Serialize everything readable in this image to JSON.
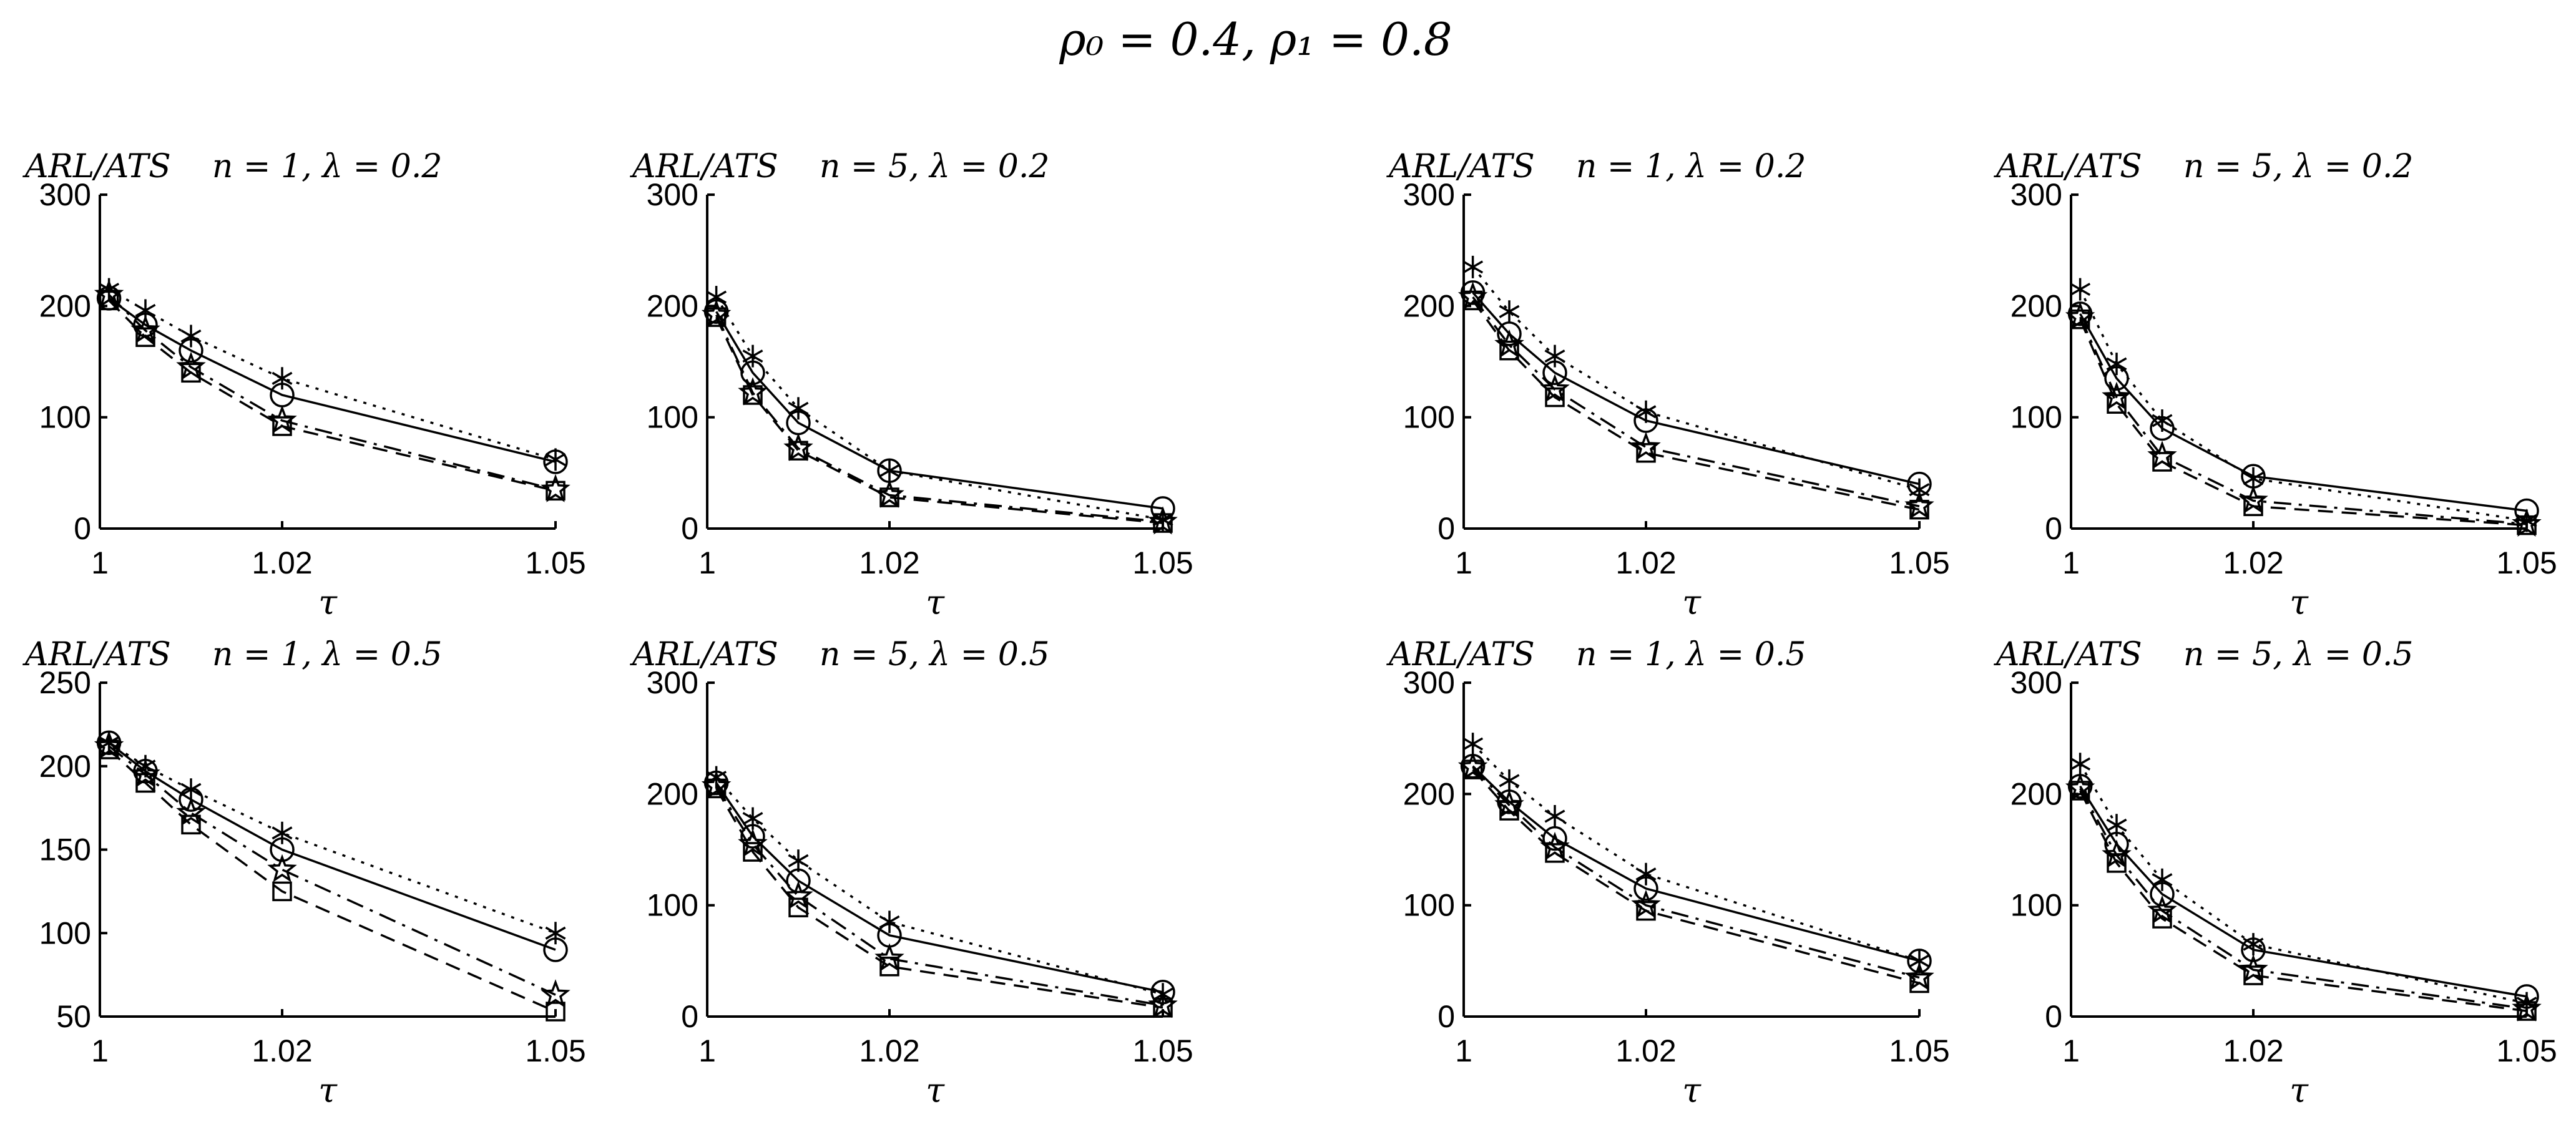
{
  "figure": {
    "title": "ρ₀ = 0.4, ρ₁ = 0.8"
  },
  "chart_data": [
    {
      "type": "line",
      "title": "ARL/ATS    n = 1, λ = 0.2",
      "xlabel": "τ",
      "x": [
        1.001,
        1.005,
        1.01,
        1.02,
        1.05
      ],
      "xticks": [
        1,
        1.02,
        1.05
      ],
      "xtick_labels": [
        "1",
        "1.02",
        "1.05"
      ],
      "xlim": [
        1,
        1.05
      ],
      "ylim": [
        0,
        300
      ],
      "yticks": [
        0,
        100,
        200,
        300
      ],
      "series": [
        {
          "name": "circle-solid",
          "line": "solid",
          "marker": "circle",
          "values": [
            207,
            183,
            160,
            120,
            60
          ]
        },
        {
          "name": "star6-dotted",
          "line": "dotted",
          "marker": "asterisk",
          "values": [
            215,
            196,
            173,
            135,
            62
          ]
        },
        {
          "name": "pentagram-dashdot",
          "line": "dashdot",
          "marker": "pentagram",
          "values": [
            210,
            178,
            145,
            97,
            35
          ]
        },
        {
          "name": "square-dashed",
          "line": "dashed",
          "marker": "square",
          "values": [
            205,
            172,
            140,
            92,
            34
          ]
        }
      ]
    },
    {
      "type": "line",
      "title": "ARL/ATS    n = 5, λ = 0.2",
      "xlabel": "τ",
      "x": [
        1.001,
        1.005,
        1.01,
        1.02,
        1.05
      ],
      "xticks": [
        1,
        1.02,
        1.05
      ],
      "xtick_labels": [
        "1",
        "1.02",
        "1.05"
      ],
      "xlim": [
        1,
        1.05
      ],
      "ylim": [
        0,
        300
      ],
      "yticks": [
        0,
        100,
        200,
        300
      ],
      "series": [
        {
          "name": "circle-solid",
          "line": "solid",
          "marker": "circle",
          "values": [
            195,
            140,
            95,
            52,
            18
          ]
        },
        {
          "name": "star6-dotted",
          "line": "dotted",
          "marker": "asterisk",
          "values": [
            208,
            155,
            108,
            52,
            8
          ]
        },
        {
          "name": "pentagram-dashdot",
          "line": "dashdot",
          "marker": "pentagram",
          "values": [
            192,
            122,
            72,
            30,
            6
          ]
        },
        {
          "name": "square-dashed",
          "line": "dashed",
          "marker": "square",
          "values": [
            190,
            120,
            70,
            28,
            5
          ]
        }
      ]
    },
    {
      "type": "line",
      "title": "ARL/ATS    n = 1, λ = 0.2",
      "xlabel": "τ",
      "x": [
        1.001,
        1.005,
        1.01,
        1.02,
        1.05
      ],
      "xticks": [
        1,
        1.02,
        1.05
      ],
      "xtick_labels": [
        "1",
        "1.02",
        "1.05"
      ],
      "xlim": [
        1,
        1.05
      ],
      "ylim": [
        0,
        300
      ],
      "yticks": [
        0,
        100,
        200,
        300
      ],
      "series": [
        {
          "name": "circle-solid",
          "line": "solid",
          "marker": "circle",
          "values": [
            212,
            175,
            140,
            97,
            40
          ]
        },
        {
          "name": "star6-dotted",
          "line": "dotted",
          "marker": "asterisk",
          "values": [
            235,
            195,
            155,
            105,
            35
          ]
        },
        {
          "name": "pentagram-dashdot",
          "line": "dashdot",
          "marker": "pentagram",
          "values": [
            208,
            165,
            125,
            73,
            20
          ]
        },
        {
          "name": "square-dashed",
          "line": "dashed",
          "marker": "square",
          "values": [
            205,
            160,
            118,
            68,
            17
          ]
        }
      ]
    },
    {
      "type": "line",
      "title": "ARL/ATS    n = 5, λ = 0.2",
      "xlabel": "τ",
      "x": [
        1.001,
        1.005,
        1.01,
        1.02,
        1.05
      ],
      "xticks": [
        1,
        1.02,
        1.05
      ],
      "xtick_labels": [
        "1",
        "1.02",
        "1.05"
      ],
      "xlim": [
        1,
        1.05
      ],
      "ylim": [
        0,
        300
      ],
      "yticks": [
        0,
        100,
        200,
        300
      ],
      "series": [
        {
          "name": "circle-solid",
          "line": "solid",
          "marker": "circle",
          "values": [
            193,
            135,
            90,
            47,
            16
          ]
        },
        {
          "name": "star6-dotted",
          "line": "dotted",
          "marker": "asterisk",
          "values": [
            215,
            148,
            97,
            45,
            7
          ]
        },
        {
          "name": "pentagram-dashdot",
          "line": "dashdot",
          "marker": "pentagram",
          "values": [
            190,
            118,
            65,
            25,
            4
          ]
        },
        {
          "name": "square-dashed",
          "line": "dashed",
          "marker": "square",
          "values": [
            188,
            112,
            60,
            20,
            3
          ]
        }
      ]
    },
    {
      "type": "line",
      "title": "ARL/ATS    n = 1, λ = 0.5",
      "xlabel": "τ",
      "x": [
        1.001,
        1.005,
        1.01,
        1.02,
        1.05
      ],
      "xticks": [
        1,
        1.02,
        1.05
      ],
      "xtick_labels": [
        "1",
        "1.02",
        "1.05"
      ],
      "xlim": [
        1,
        1.05
      ],
      "ylim": [
        50,
        250
      ],
      "yticks": [
        50,
        100,
        150,
        200,
        250
      ],
      "series": [
        {
          "name": "circle-solid",
          "line": "solid",
          "marker": "circle",
          "values": [
            214,
            197,
            180,
            150,
            90
          ]
        },
        {
          "name": "star6-dotted",
          "line": "dotted",
          "marker": "asterisk",
          "values": [
            214,
            200,
            186,
            160,
            100
          ]
        },
        {
          "name": "pentagram-dashdot",
          "line": "dashdot",
          "marker": "pentagram",
          "values": [
            212,
            195,
            172,
            138,
            63
          ]
        },
        {
          "name": "square-dashed",
          "line": "dashed",
          "marker": "square",
          "values": [
            210,
            190,
            165,
            125,
            53
          ]
        }
      ]
    },
    {
      "type": "line",
      "title": "ARL/ATS    n = 5, λ = 0.5",
      "xlabel": "τ",
      "x": [
        1.001,
        1.005,
        1.01,
        1.02,
        1.05
      ],
      "xticks": [
        1,
        1.02,
        1.05
      ],
      "xtick_labels": [
        "1",
        "1.02",
        "1.05"
      ],
      "xlim": [
        1,
        1.05
      ],
      "ylim": [
        0,
        300
      ],
      "yticks": [
        0,
        100,
        200,
        300
      ],
      "series": [
        {
          "name": "circle-solid",
          "line": "solid",
          "marker": "circle",
          "values": [
            210,
            162,
            122,
            73,
            22
          ]
        },
        {
          "name": "star6-dotted",
          "line": "dotted",
          "marker": "asterisk",
          "values": [
            215,
            178,
            140,
            85,
            20
          ]
        },
        {
          "name": "pentagram-dashdot",
          "line": "dashdot",
          "marker": "pentagram",
          "values": [
            207,
            155,
            108,
            52,
            10
          ]
        },
        {
          "name": "square-dashed",
          "line": "dashed",
          "marker": "square",
          "values": [
            205,
            148,
            98,
            45,
            8
          ]
        }
      ]
    },
    {
      "type": "line",
      "title": "ARL/ATS    n = 1, λ = 0.5",
      "xlabel": "τ",
      "x": [
        1.001,
        1.005,
        1.01,
        1.02,
        1.05
      ],
      "xticks": [
        1,
        1.02,
        1.05
      ],
      "xtick_labels": [
        "1",
        "1.02",
        "1.05"
      ],
      "xlim": [
        1,
        1.05
      ],
      "ylim": [
        0,
        300
      ],
      "yticks": [
        0,
        100,
        200,
        300
      ],
      "series": [
        {
          "name": "circle-solid",
          "line": "solid",
          "marker": "circle",
          "values": [
            225,
            193,
            160,
            115,
            50
          ]
        },
        {
          "name": "star6-dotted",
          "line": "dotted",
          "marker": "asterisk",
          "values": [
            245,
            212,
            180,
            128,
            50
          ]
        },
        {
          "name": "pentagram-dashdot",
          "line": "dashdot",
          "marker": "pentagram",
          "values": [
            224,
            190,
            152,
            100,
            35
          ]
        },
        {
          "name": "square-dashed",
          "line": "dashed",
          "marker": "square",
          "values": [
            222,
            185,
            147,
            95,
            30
          ]
        }
      ]
    },
    {
      "type": "line",
      "title": "ARL/ATS    n = 5, λ = 0.5",
      "xlabel": "τ",
      "x": [
        1.001,
        1.005,
        1.01,
        1.02,
        1.05
      ],
      "xticks": [
        1,
        1.02,
        1.05
      ],
      "xtick_labels": [
        "1",
        "1.02",
        "1.05"
      ],
      "xlim": [
        1,
        1.05
      ],
      "ylim": [
        0,
        300
      ],
      "yticks": [
        0,
        100,
        200,
        300
      ],
      "series": [
        {
          "name": "circle-solid",
          "line": "solid",
          "marker": "circle",
          "values": [
            207,
            155,
            110,
            60,
            18
          ]
        },
        {
          "name": "star6-dotted",
          "line": "dotted",
          "marker": "asterisk",
          "values": [
            227,
            172,
            123,
            65,
            12
          ]
        },
        {
          "name": "pentagram-dashdot",
          "line": "dashdot",
          "marker": "pentagram",
          "values": [
            205,
            145,
            95,
            42,
            7
          ]
        },
        {
          "name": "square-dashed",
          "line": "dashed",
          "marker": "square",
          "values": [
            203,
            138,
            88,
            37,
            5
          ]
        }
      ]
    }
  ]
}
